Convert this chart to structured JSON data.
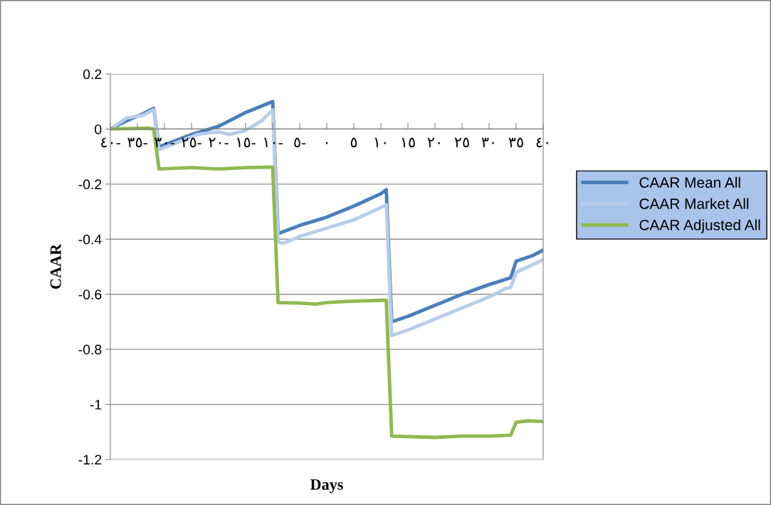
{
  "chart_data": {
    "type": "line",
    "xlabel": "Days",
    "ylabel": "CAAR",
    "xlim": [
      -40,
      40
    ],
    "ylim": [
      -1.2,
      0.2
    ],
    "yticks": [
      -1.2,
      -1,
      -0.8,
      -0.6,
      -0.4,
      -0.2,
      0,
      0.2
    ],
    "xticks": [
      {
        "value": -40,
        "label": "٤٠-"
      },
      {
        "value": -35,
        "label": "٣٥-"
      },
      {
        "value": -30,
        "label": "٣٠-"
      },
      {
        "value": -25,
        "label": "٢٥-"
      },
      {
        "value": -20,
        "label": "٢٠-"
      },
      {
        "value": -15,
        "label": "١٥-"
      },
      {
        "value": -10,
        "label": "١٠-"
      },
      {
        "value": -5,
        "label": "٥-"
      },
      {
        "value": 0,
        "label": "٠"
      },
      {
        "value": 5,
        "label": "٥"
      },
      {
        "value": 10,
        "label": "١٠"
      },
      {
        "value": 15,
        "label": "١٥"
      },
      {
        "value": 20,
        "label": "٢٠"
      },
      {
        "value": 25,
        "label": "٢٥"
      },
      {
        "value": 30,
        "label": "٣٠"
      },
      {
        "value": 35,
        "label": "٣٥"
      },
      {
        "value": 40,
        "label": "٤٠"
      }
    ],
    "grid": "y",
    "legend": "right",
    "marker": "none",
    "line_style": "solid",
    "series": [
      {
        "name": "CAAR Mean All",
        "color": "#4a7ebb",
        "x": [
          -40,
          -37,
          -34,
          -32,
          -31,
          -25,
          -20,
          -15,
          -10,
          -9,
          -5,
          0,
          5,
          10,
          11,
          12,
          15,
          20,
          25,
          30,
          34,
          35,
          38,
          40
        ],
        "values": [
          0.0,
          0.03,
          0.055,
          0.075,
          -0.065,
          -0.02,
          0.01,
          0.06,
          0.1,
          -0.38,
          -0.35,
          -0.32,
          -0.28,
          -0.235,
          -0.22,
          -0.7,
          -0.68,
          -0.64,
          -0.6,
          -0.565,
          -0.54,
          -0.48,
          -0.46,
          -0.44
        ]
      },
      {
        "name": "CAAR Market All",
        "color": "#b9cdeb",
        "x": [
          -40,
          -37,
          -34,
          -32,
          -31,
          -24,
          -20,
          -18,
          -15,
          -12,
          -10,
          -9,
          -8,
          -5,
          0,
          5,
          10,
          11,
          12,
          15,
          20,
          25,
          30,
          33,
          34,
          35,
          40
        ],
        "values": [
          0.0,
          0.04,
          0.05,
          0.07,
          -0.075,
          -0.02,
          -0.01,
          -0.02,
          -0.005,
          0.03,
          0.07,
          -0.41,
          -0.415,
          -0.39,
          -0.36,
          -0.33,
          -0.285,
          -0.275,
          -0.75,
          -0.73,
          -0.69,
          -0.65,
          -0.61,
          -0.58,
          -0.575,
          -0.52,
          -0.475
        ]
      },
      {
        "name": "CAAR Adjusted All",
        "color": "#8fba4f",
        "x": [
          -40,
          -33,
          -32,
          -31,
          -25,
          -20,
          -15,
          -10,
          -9,
          -5,
          -2,
          0,
          5,
          10,
          11,
          12,
          20,
          25,
          30,
          34,
          35,
          37,
          40
        ],
        "values": [
          0.0,
          0.003,
          0.0,
          -0.145,
          -0.14,
          -0.145,
          -0.14,
          -0.138,
          -0.63,
          -0.632,
          -0.636,
          -0.63,
          -0.625,
          -0.622,
          -0.622,
          -1.115,
          -1.12,
          -1.115,
          -1.115,
          -1.112,
          -1.065,
          -1.06,
          -1.062
        ]
      }
    ]
  }
}
